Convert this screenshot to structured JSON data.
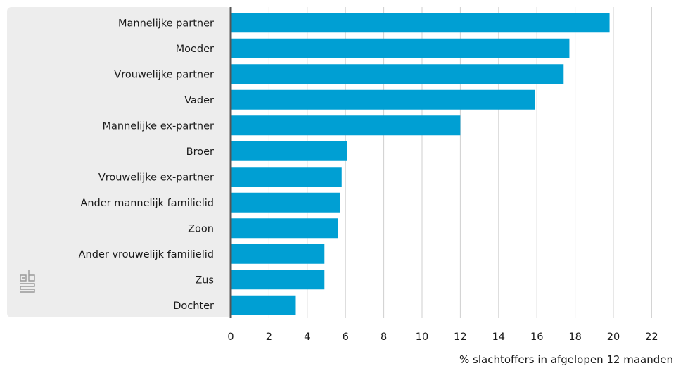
{
  "chart_data": {
    "type": "bar",
    "orientation": "horizontal",
    "categories": [
      "Mannelijke partner",
      "Moeder",
      "Vrouwelijke partner",
      "Vader",
      "Mannelijke ex-partner",
      "Broer",
      "Vrouwelijke ex-partner",
      "Ander mannelijk familielid",
      "Zoon",
      "Ander vrouwelijk familielid",
      "Zus",
      "Dochter"
    ],
    "values": [
      19.8,
      17.7,
      17.4,
      15.9,
      12.0,
      6.1,
      5.8,
      5.7,
      5.6,
      4.9,
      4.9,
      3.4
    ],
    "xlabel": "% slachtoffers in afgelopen 12 maanden",
    "xlim": [
      0,
      22
    ],
    "xticks": [
      0,
      2,
      4,
      6,
      8,
      10,
      12,
      14,
      16,
      18,
      20,
      22
    ],
    "grid": true,
    "legend": "none",
    "bar_color": "#009fd3",
    "panel_color": "#ededed",
    "axis_color": "#555555",
    "logo": "cbs-logo"
  }
}
